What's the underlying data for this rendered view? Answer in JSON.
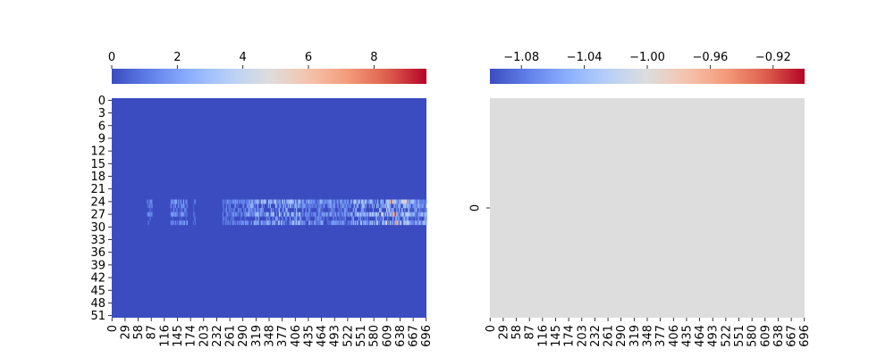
{
  "chart_data": [
    {
      "type": "heatmap",
      "title": "",
      "colormap": "coolwarm",
      "colorbar": {
        "location": "top",
        "range": [
          0,
          9.6
        ],
        "ticks": [
          0,
          2,
          4,
          6,
          8
        ],
        "tick_labels": [
          "0",
          "2",
          "4",
          "6",
          "8"
        ]
      },
      "x_ticks": [
        0,
        29,
        58,
        87,
        116,
        145,
        174,
        203,
        232,
        261,
        290,
        319,
        348,
        377,
        406,
        435,
        464,
        493,
        522,
        551,
        580,
        609,
        638,
        667,
        696
      ],
      "x_tick_labels": [
        "0",
        "29",
        "58",
        "87",
        "116",
        "145",
        "174",
        "203",
        "232",
        "261",
        "290",
        "319",
        "348",
        "377",
        "406",
        "435",
        "464",
        "493",
        "522",
        "551",
        "580",
        "609",
        "638",
        "667",
        "696"
      ],
      "x_range": [
        0,
        697
      ],
      "y_ticks": [
        0,
        3,
        6,
        9,
        12,
        15,
        18,
        21,
        24,
        27,
        30,
        33,
        36,
        39,
        42,
        45,
        48,
        51
      ],
      "y_tick_labels": [
        "0",
        "3",
        "6",
        "9",
        "12",
        "15",
        "18",
        "21",
        "24",
        "27",
        "30",
        "33",
        "36",
        "39",
        "42",
        "45",
        "48",
        "51"
      ],
      "y_range": [
        0,
        52
      ],
      "background_value": 0,
      "active_rows": [
        {
          "row": 24,
          "strength": 0.55
        },
        {
          "row": 25,
          "strength": 0.35
        },
        {
          "row": 26,
          "strength": 0.25
        },
        {
          "row": 27,
          "strength": 0.55
        },
        {
          "row": 28,
          "strength": 0.15
        },
        {
          "row": 29,
          "strength": 0.45
        }
      ],
      "active_column_ranges": [
        {
          "start": 78,
          "end": 90,
          "level": 0.8
        },
        {
          "start": 130,
          "end": 168,
          "level": 1.0
        },
        {
          "start": 180,
          "end": 186,
          "level": 0.7
        },
        {
          "start": 245,
          "end": 300,
          "level": 0.9
        },
        {
          "start": 300,
          "end": 420,
          "level": 1.6
        },
        {
          "start": 420,
          "end": 530,
          "level": 1.2
        },
        {
          "start": 530,
          "end": 600,
          "level": 1.7
        },
        {
          "start": 600,
          "end": 660,
          "level": 2.4
        },
        {
          "start": 660,
          "end": 697,
          "level": 1.5
        }
      ],
      "peak_cells": [
        {
          "row": 24,
          "col": 618,
          "value": 8.6
        },
        {
          "row": 27,
          "col": 625,
          "value": 8.0
        },
        {
          "row": 29,
          "col": 630,
          "value": 7.2
        },
        {
          "row": 24,
          "col": 360,
          "value": 4.5
        },
        {
          "row": 27,
          "col": 370,
          "value": 4.0
        }
      ]
    },
    {
      "type": "heatmap",
      "title": "",
      "colormap": "coolwarm",
      "colorbar": {
        "location": "top",
        "range": [
          -1.1,
          -0.9
        ],
        "ticks": [
          -1.08,
          -1.04,
          -1.0,
          -0.96,
          -0.92
        ],
        "tick_labels": [
          "−1.08",
          "−1.04",
          "−1.00",
          "−0.96",
          "−0.92"
        ]
      },
      "x_ticks": [
        0,
        29,
        58,
        87,
        116,
        145,
        174,
        203,
        232,
        261,
        290,
        319,
        348,
        377,
        406,
        435,
        464,
        493,
        522,
        551,
        580,
        609,
        638,
        667,
        696
      ],
      "x_tick_labels": [
        "0",
        "29",
        "58",
        "87",
        "116",
        "145",
        "174",
        "203",
        "232",
        "261",
        "290",
        "319",
        "348",
        "377",
        "406",
        "435",
        "464",
        "493",
        "522",
        "551",
        "580",
        "609",
        "638",
        "667",
        "696"
      ],
      "x_range": [
        0,
        697
      ],
      "y_ticks": [
        0
      ],
      "y_tick_labels": [
        "0"
      ],
      "y_range": [
        0,
        1
      ],
      "uniform_value": -1.0
    }
  ]
}
